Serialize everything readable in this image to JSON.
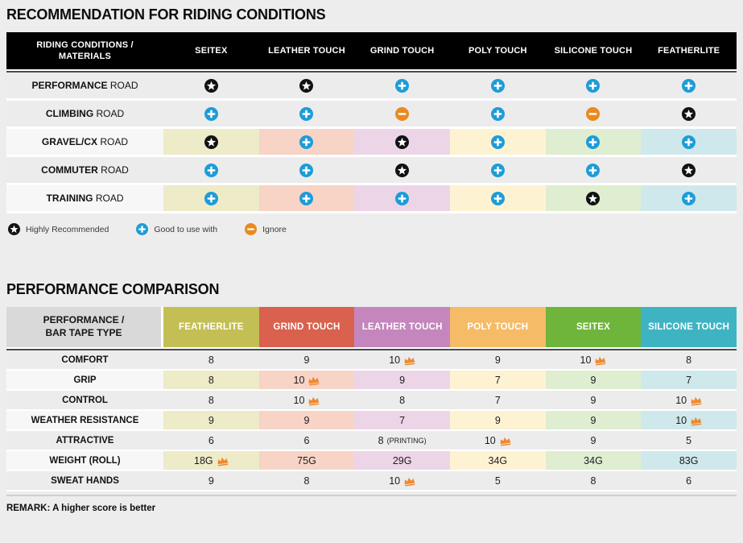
{
  "palette": {
    "page_bg": "#ededed",
    "row_gray": "#ececec",
    "row_label_light": "#f7f7f7",
    "header_black": "#000000",
    "header_gray": "#d9d9d9",
    "dark_rule": "#4b4b4b",
    "icon_plus_blue": "#1e9cd8",
    "icon_minus_orange": "#ea8a1e",
    "icon_star_black": "#121212",
    "crown_orange": "#f0882c",
    "tints": [
      "#edebc8",
      "#f7d4c6",
      "#edd5e8",
      "#fdf3d2",
      "#dfedd0",
      "#cfe8ec"
    ]
  },
  "riding_section": {
    "title": "RECOMMENDATION FOR RIDING CONDITIONS",
    "table": {
      "header_line1": "RIDING CONDITIONS /",
      "header_line2": "MATERIALS",
      "columns": [
        "SEITEX",
        "LEATHER TOUCH",
        "GRIND TOUCH",
        "POLY TOUCH",
        "SILICONE TOUCH",
        "FEATHERLITE"
      ],
      "rows": [
        {
          "label_bold": "PERFORMANCE",
          "label_rest": "ROAD",
          "tinted": false,
          "cells": [
            "star",
            "star",
            "plus",
            "plus",
            "plus",
            "plus"
          ]
        },
        {
          "label_bold": "CLIMBING",
          "label_rest": "ROAD",
          "tinted": false,
          "cells": [
            "plus",
            "plus",
            "minus",
            "plus",
            "minus",
            "star"
          ]
        },
        {
          "label_bold": "GRAVEL/CX",
          "label_rest": "ROAD",
          "tinted": true,
          "cells": [
            "star",
            "plus",
            "star",
            "plus",
            "plus",
            "plus"
          ]
        },
        {
          "label_bold": "COMMUTER",
          "label_rest": "ROAD",
          "tinted": false,
          "cells": [
            "plus",
            "plus",
            "star",
            "plus",
            "plus",
            "star"
          ]
        },
        {
          "label_bold": "TRAINING",
          "label_rest": "ROAD",
          "tinted": true,
          "cells": [
            "plus",
            "plus",
            "plus",
            "plus",
            "star",
            "plus"
          ]
        }
      ]
    },
    "legend": [
      {
        "icon": "star",
        "label": "Highly Recommended"
      },
      {
        "icon": "plus",
        "label": "Good to use with"
      },
      {
        "icon": "minus",
        "label": "Ignore"
      }
    ]
  },
  "performance_section": {
    "title": "PERFORMANCE COMPARISON",
    "table": {
      "header_line1": "PERFORMANCE /",
      "header_line2": "BAR TAPE TYPE",
      "columns": [
        {
          "label": "FEATHERLITE",
          "color": "#c4bf55"
        },
        {
          "label": "GRIND TOUCH",
          "color": "#d9614d"
        },
        {
          "label": "LEATHER TOUCH",
          "color": "#c486bc"
        },
        {
          "label": "POLY TOUCH",
          "color": "#f6bb67"
        },
        {
          "label": "SEITEX",
          "color": "#6fb53b"
        },
        {
          "label": "SILICONE TOUCH",
          "color": "#3eb4c3"
        }
      ],
      "rows": [
        {
          "label": "COMFORT",
          "tinted": false,
          "cells": [
            {
              "value": "8"
            },
            {
              "value": "9"
            },
            {
              "value": "10",
              "crown": true
            },
            {
              "value": "9"
            },
            {
              "value": "10",
              "crown": true
            },
            {
              "value": "8"
            }
          ]
        },
        {
          "label": "GRIP",
          "tinted": true,
          "cells": [
            {
              "value": "8"
            },
            {
              "value": "10",
              "crown": true
            },
            {
              "value": "9"
            },
            {
              "value": "7"
            },
            {
              "value": "9"
            },
            {
              "value": "7"
            }
          ]
        },
        {
          "label": "CONTROL",
          "tinted": false,
          "cells": [
            {
              "value": "8"
            },
            {
              "value": "10",
              "crown": true
            },
            {
              "value": "8"
            },
            {
              "value": "7"
            },
            {
              "value": "9"
            },
            {
              "value": "10",
              "crown": true
            }
          ]
        },
        {
          "label": "WEATHER RESISTANCE",
          "tinted": true,
          "cells": [
            {
              "value": "9"
            },
            {
              "value": "9"
            },
            {
              "value": "7"
            },
            {
              "value": "9"
            },
            {
              "value": "9"
            },
            {
              "value": "10",
              "crown": true
            }
          ]
        },
        {
          "label": "ATTRACTIVE",
          "tinted": false,
          "cells": [
            {
              "value": "6"
            },
            {
              "value": "6"
            },
            {
              "value": "8",
              "note": "(PRINTING)"
            },
            {
              "value": "10",
              "crown": true
            },
            {
              "value": "9"
            },
            {
              "value": "5"
            }
          ]
        },
        {
          "label": "WEIGHT (ROLL)",
          "tinted": true,
          "cells": [
            {
              "value": "18G",
              "crown": true
            },
            {
              "value": "75G"
            },
            {
              "value": "29G"
            },
            {
              "value": "34G"
            },
            {
              "value": "34G"
            },
            {
              "value": "83G"
            }
          ]
        },
        {
          "label": "SWEAT HANDS",
          "tinted": false,
          "cells": [
            {
              "value": "9"
            },
            {
              "value": "8"
            },
            {
              "value": "10",
              "crown": true
            },
            {
              "value": "5"
            },
            {
              "value": "8"
            },
            {
              "value": "6"
            }
          ]
        }
      ]
    },
    "remark": "REMARK: A higher score is better"
  },
  "chart_data": [
    {
      "type": "table",
      "title": "RECOMMENDATION FOR RIDING CONDITIONS",
      "row_header": "RIDING CONDITIONS / MATERIALS",
      "columns": [
        "SEITEX",
        "LEATHER TOUCH",
        "GRIND TOUCH",
        "POLY TOUCH",
        "SILICONE TOUCH",
        "FEATHERLITE"
      ],
      "rows": [
        {
          "label": "PERFORMANCE ROAD",
          "values": [
            "highly-recommended",
            "highly-recommended",
            "good-to-use-with",
            "good-to-use-with",
            "good-to-use-with",
            "good-to-use-with"
          ]
        },
        {
          "label": "CLIMBING ROAD",
          "values": [
            "good-to-use-with",
            "good-to-use-with",
            "ignore",
            "good-to-use-with",
            "ignore",
            "highly-recommended"
          ]
        },
        {
          "label": "GRAVEL/CX ROAD",
          "values": [
            "highly-recommended",
            "good-to-use-with",
            "highly-recommended",
            "good-to-use-with",
            "good-to-use-with",
            "good-to-use-with"
          ]
        },
        {
          "label": "COMMUTER ROAD",
          "values": [
            "good-to-use-with",
            "good-to-use-with",
            "highly-recommended",
            "good-to-use-with",
            "good-to-use-with",
            "highly-recommended"
          ]
        },
        {
          "label": "TRAINING ROAD",
          "values": [
            "good-to-use-with",
            "good-to-use-with",
            "good-to-use-with",
            "good-to-use-with",
            "highly-recommended",
            "good-to-use-with"
          ]
        }
      ],
      "legend": [
        "Highly Recommended",
        "Good to use with",
        "Ignore"
      ]
    },
    {
      "type": "table",
      "title": "PERFORMANCE COMPARISON",
      "row_header": "PERFORMANCE / BAR TAPE TYPE",
      "columns": [
        "FEATHERLITE",
        "GRIND TOUCH",
        "LEATHER TOUCH",
        "POLY TOUCH",
        "SEITEX",
        "SILICONE TOUCH"
      ],
      "rows": [
        {
          "label": "COMFORT",
          "values": [
            "8",
            "9",
            "10 (best)",
            "9",
            "10 (best)",
            "8"
          ]
        },
        {
          "label": "GRIP",
          "values": [
            "8",
            "10 (best)",
            "9",
            "7",
            "9",
            "7"
          ]
        },
        {
          "label": "CONTROL",
          "values": [
            "8",
            "10 (best)",
            "8",
            "7",
            "9",
            "10 (best)"
          ]
        },
        {
          "label": "WEATHER RESISTANCE",
          "values": [
            "9",
            "9",
            "7",
            "9",
            "9",
            "10 (best)"
          ]
        },
        {
          "label": "ATTRACTIVE",
          "values": [
            "6",
            "6",
            "8 (PRINTING)",
            "10 (best)",
            "9",
            "5"
          ]
        },
        {
          "label": "WEIGHT (ROLL)",
          "values": [
            "18G (best)",
            "75G",
            "29G",
            "34G",
            "34G",
            "83G"
          ]
        },
        {
          "label": "SWEAT HANDS",
          "values": [
            "9",
            "8",
            "10 (best)",
            "5",
            "8",
            "6"
          ]
        }
      ],
      "remark": "REMARK: A higher score is better"
    }
  ]
}
